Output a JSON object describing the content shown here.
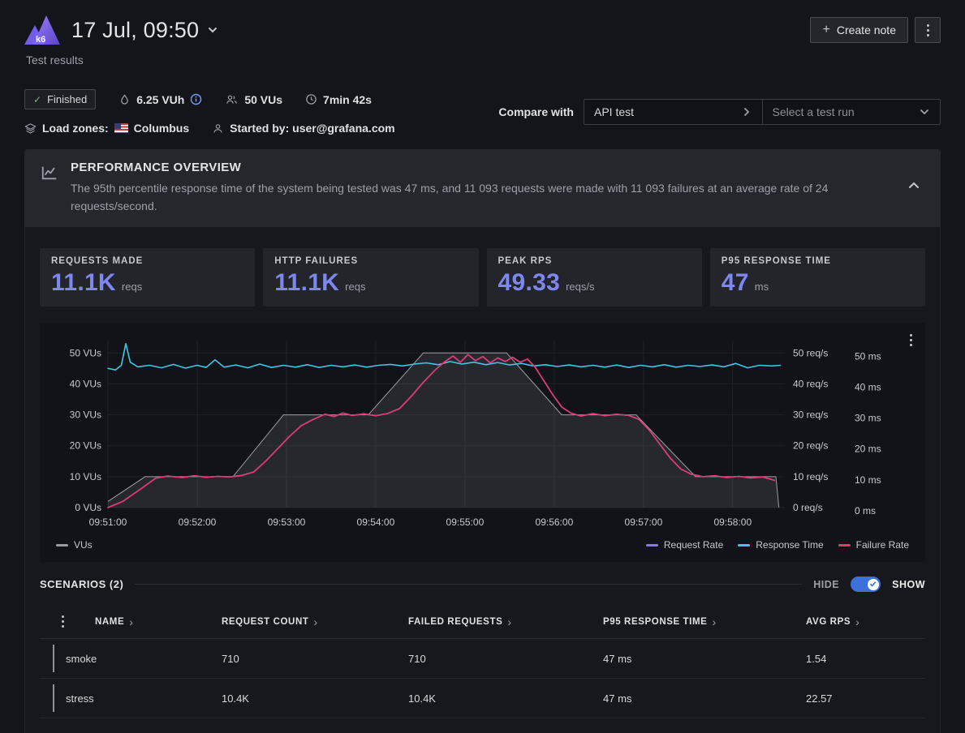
{
  "header": {
    "logo_text": "k6",
    "title": "17 Jul, 09:50",
    "subtitle": "Test results",
    "create_note_label": "Create note",
    "plus_icon": "+"
  },
  "meta": {
    "status_check_icon": "✓",
    "status_badge": "Finished",
    "vuh": "6.25 VUh",
    "vus": "50 VUs",
    "duration": "7min 42s",
    "load_zones_label": "Load zones:",
    "load_zone": "Columbus",
    "started_by": "Started by: user@grafana.com",
    "compare_label": "Compare with",
    "compare_test_name": "API test",
    "compare_run_placeholder": "Select a test run"
  },
  "overview": {
    "title": "PERFORMANCE OVERVIEW",
    "description": "The 95th percentile response time of the system being tested was 47 ms, and 11 093 requests were made with 11 093 failures at an average rate of 24 requests/second.",
    "accent_color": "#7e87ef",
    "stats": [
      {
        "label": "REQUESTS MADE",
        "value": "11.1K",
        "unit": "reqs"
      },
      {
        "label": "HTTP FAILURES",
        "value": "11.1K",
        "unit": "reqs"
      },
      {
        "label": "PEAK RPS",
        "value": "49.33",
        "unit": "reqs/s"
      },
      {
        "label": "P95 RESPONSE TIME",
        "value": "47",
        "unit": "ms"
      }
    ]
  },
  "chart_data": {
    "type": "line",
    "x_axis": {
      "range_seconds": [
        0,
        455
      ],
      "ticks_seconds": [
        0,
        60,
        120,
        180,
        240,
        300,
        360,
        420
      ],
      "tick_labels": [
        "09:51:00",
        "09:52:00",
        "09:53:00",
        "09:54:00",
        "09:55:00",
        "09:56:00",
        "09:57:00",
        "09:58:00"
      ]
    },
    "y_left": {
      "unit": "VUs",
      "ticks": [
        0,
        10,
        20,
        30,
        40,
        50
      ],
      "max": 50
    },
    "y_right_1": {
      "unit": "req/s",
      "ticks": [
        0,
        10,
        20,
        30,
        40,
        50
      ],
      "max": 50
    },
    "y_right_2": {
      "unit": "ms",
      "ticks": [
        0,
        10,
        20,
        30,
        40,
        50
      ],
      "max": 50
    },
    "grid": true,
    "legend_position": "bottom",
    "series": [
      {
        "name": "VUs",
        "type": "area",
        "color": "#9a9da4",
        "fill": "rgba(150,153,160,0.16)",
        "axis": "left",
        "points": [
          [
            0,
            2
          ],
          [
            25,
            10
          ],
          [
            84,
            10
          ],
          [
            118,
            30
          ],
          [
            175,
            30
          ],
          [
            212,
            50
          ],
          [
            268,
            50
          ],
          [
            305,
            30
          ],
          [
            355,
            30
          ],
          [
            395,
            10
          ],
          [
            449,
            10
          ],
          [
            451,
            0
          ]
        ]
      },
      {
        "name": "Request Rate",
        "type": "line",
        "color": "#8877ee",
        "axis": "right_req",
        "points": [
          [
            0,
            0
          ],
          [
            10,
            2
          ],
          [
            22,
            6
          ],
          [
            32,
            9.5
          ],
          [
            40,
            10.2
          ],
          [
            50,
            9.7
          ],
          [
            58,
            10.3
          ],
          [
            66,
            9.8
          ],
          [
            74,
            10.1
          ],
          [
            82,
            9.9
          ],
          [
            90,
            10.4
          ],
          [
            98,
            11.5
          ],
          [
            106,
            15
          ],
          [
            114,
            19
          ],
          [
            122,
            23
          ],
          [
            130,
            26.5
          ],
          [
            138,
            28.5
          ],
          [
            146,
            30.2
          ],
          [
            152,
            29.4
          ],
          [
            158,
            30.6
          ],
          [
            164,
            29.8
          ],
          [
            172,
            30.3
          ],
          [
            180,
            29.7
          ],
          [
            188,
            30.4
          ],
          [
            196,
            32
          ],
          [
            204,
            36
          ],
          [
            212,
            40.5
          ],
          [
            220,
            44.5
          ],
          [
            226,
            47
          ],
          [
            232,
            49
          ],
          [
            237,
            47
          ],
          [
            242,
            49.5
          ],
          [
            247,
            47.5
          ],
          [
            252,
            48.8
          ],
          [
            257,
            46.8
          ],
          [
            262,
            48.4
          ],
          [
            267,
            47.2
          ],
          [
            272,
            48.6
          ],
          [
            277,
            47
          ],
          [
            282,
            48
          ],
          [
            287,
            45.5
          ],
          [
            293,
            41
          ],
          [
            299,
            36.5
          ],
          [
            305,
            32.5
          ],
          [
            311,
            30.6
          ],
          [
            318,
            29.6
          ],
          [
            326,
            30.4
          ],
          [
            334,
            29.7
          ],
          [
            342,
            30.2
          ],
          [
            350,
            29.8
          ],
          [
            357,
            28.5
          ],
          [
            364,
            25
          ],
          [
            371,
            20.5
          ],
          [
            378,
            16
          ],
          [
            385,
            12.5
          ],
          [
            392,
            10.8
          ],
          [
            400,
            10
          ],
          [
            408,
            10.3
          ],
          [
            416,
            9.7
          ],
          [
            424,
            10.1
          ],
          [
            432,
            9.6
          ],
          [
            440,
            9.9
          ],
          [
            448,
            8.8
          ]
        ]
      },
      {
        "name": "Response Time",
        "type": "line",
        "color": "#3fc6e4",
        "axis": "right_ms",
        "points": [
          [
            0,
            45
          ],
          [
            5,
            44.5
          ],
          [
            9,
            46
          ],
          [
            12,
            53
          ],
          [
            15,
            47
          ],
          [
            20,
            45.5
          ],
          [
            28,
            46
          ],
          [
            36,
            45.2
          ],
          [
            44,
            46.3
          ],
          [
            52,
            45.1
          ],
          [
            60,
            46
          ],
          [
            66,
            45.3
          ],
          [
            72,
            47.8
          ],
          [
            78,
            45.4
          ],
          [
            86,
            46.1
          ],
          [
            94,
            45.2
          ],
          [
            102,
            46.4
          ],
          [
            110,
            45.3
          ],
          [
            118,
            46
          ],
          [
            126,
            45.4
          ],
          [
            134,
            46.2
          ],
          [
            142,
            45.3
          ],
          [
            150,
            46
          ],
          [
            158,
            45.5
          ],
          [
            166,
            46.1
          ],
          [
            174,
            45.4
          ],
          [
            182,
            46
          ],
          [
            190,
            46.3
          ],
          [
            198,
            45.8
          ],
          [
            206,
            46.4
          ],
          [
            214,
            46.8
          ],
          [
            222,
            46.2
          ],
          [
            230,
            47.2
          ],
          [
            238,
            46.4
          ],
          [
            246,
            47
          ],
          [
            254,
            46.2
          ],
          [
            262,
            46.9
          ],
          [
            270,
            46.1
          ],
          [
            278,
            46.6
          ],
          [
            286,
            45.8
          ],
          [
            294,
            46.2
          ],
          [
            302,
            45.6
          ],
          [
            310,
            46.1
          ],
          [
            318,
            45.5
          ],
          [
            326,
            46
          ],
          [
            334,
            45.4
          ],
          [
            342,
            46.1
          ],
          [
            350,
            45.3
          ],
          [
            358,
            46
          ],
          [
            366,
            45.5
          ],
          [
            374,
            46.2
          ],
          [
            382,
            45.4
          ],
          [
            390,
            46
          ],
          [
            398,
            45.6
          ],
          [
            406,
            46.1
          ],
          [
            414,
            45.5
          ],
          [
            422,
            46.6
          ],
          [
            430,
            45.2
          ],
          [
            438,
            46
          ],
          [
            446,
            45.8
          ],
          [
            452,
            46
          ]
        ]
      },
      {
        "name": "Failure Rate",
        "type": "line",
        "color": "#e8376d",
        "axis": "right_req",
        "points": [
          [
            0,
            0
          ],
          [
            10,
            2
          ],
          [
            22,
            6
          ],
          [
            32,
            9.5
          ],
          [
            40,
            10.2
          ],
          [
            50,
            9.7
          ],
          [
            58,
            10.3
          ],
          [
            66,
            9.8
          ],
          [
            74,
            10.1
          ],
          [
            82,
            9.9
          ],
          [
            90,
            10.4
          ],
          [
            98,
            11.5
          ],
          [
            106,
            15
          ],
          [
            114,
            19
          ],
          [
            122,
            23
          ],
          [
            130,
            26.5
          ],
          [
            138,
            28.5
          ],
          [
            146,
            30.2
          ],
          [
            152,
            29.4
          ],
          [
            158,
            30.6
          ],
          [
            164,
            29.8
          ],
          [
            172,
            30.3
          ],
          [
            180,
            29.7
          ],
          [
            188,
            30.4
          ],
          [
            196,
            32
          ],
          [
            204,
            36
          ],
          [
            212,
            40.5
          ],
          [
            220,
            44.5
          ],
          [
            226,
            47
          ],
          [
            232,
            49
          ],
          [
            237,
            47
          ],
          [
            242,
            49.5
          ],
          [
            247,
            47.5
          ],
          [
            252,
            48.8
          ],
          [
            257,
            46.8
          ],
          [
            262,
            48.4
          ],
          [
            267,
            47.2
          ],
          [
            272,
            48.6
          ],
          [
            277,
            47
          ],
          [
            282,
            48
          ],
          [
            287,
            45.5
          ],
          [
            293,
            41
          ],
          [
            299,
            36.5
          ],
          [
            305,
            32.5
          ],
          [
            311,
            30.6
          ],
          [
            318,
            29.6
          ],
          [
            326,
            30.4
          ],
          [
            334,
            29.7
          ],
          [
            342,
            30.2
          ],
          [
            350,
            29.8
          ],
          [
            357,
            28.5
          ],
          [
            364,
            25
          ],
          [
            371,
            20.5
          ],
          [
            378,
            16
          ],
          [
            385,
            12.5
          ],
          [
            392,
            10.8
          ],
          [
            400,
            10
          ],
          [
            408,
            10.3
          ],
          [
            416,
            9.7
          ],
          [
            424,
            10.1
          ],
          [
            432,
            9.6
          ],
          [
            440,
            9.9
          ],
          [
            448,
            8.8
          ]
        ]
      }
    ]
  },
  "scenarios": {
    "title": "SCENARIOS (2)",
    "hide_label": "HIDE",
    "show_label": "SHOW",
    "toggle_on": true,
    "sort_icon": "›",
    "columns": [
      "NAME",
      "REQUEST COUNT",
      "FAILED REQUESTS",
      "P95 RESPONSE TIME",
      "AVG RPS"
    ],
    "rows": [
      {
        "name": "smoke",
        "request_count": "710",
        "failed_requests": "710",
        "p95_response_time": "47 ms",
        "avg_rps": "1.54"
      },
      {
        "name": "stress",
        "request_count": "10.4K",
        "failed_requests": "10.4K",
        "p95_response_time": "47 ms",
        "avg_rps": "22.57"
      }
    ]
  }
}
